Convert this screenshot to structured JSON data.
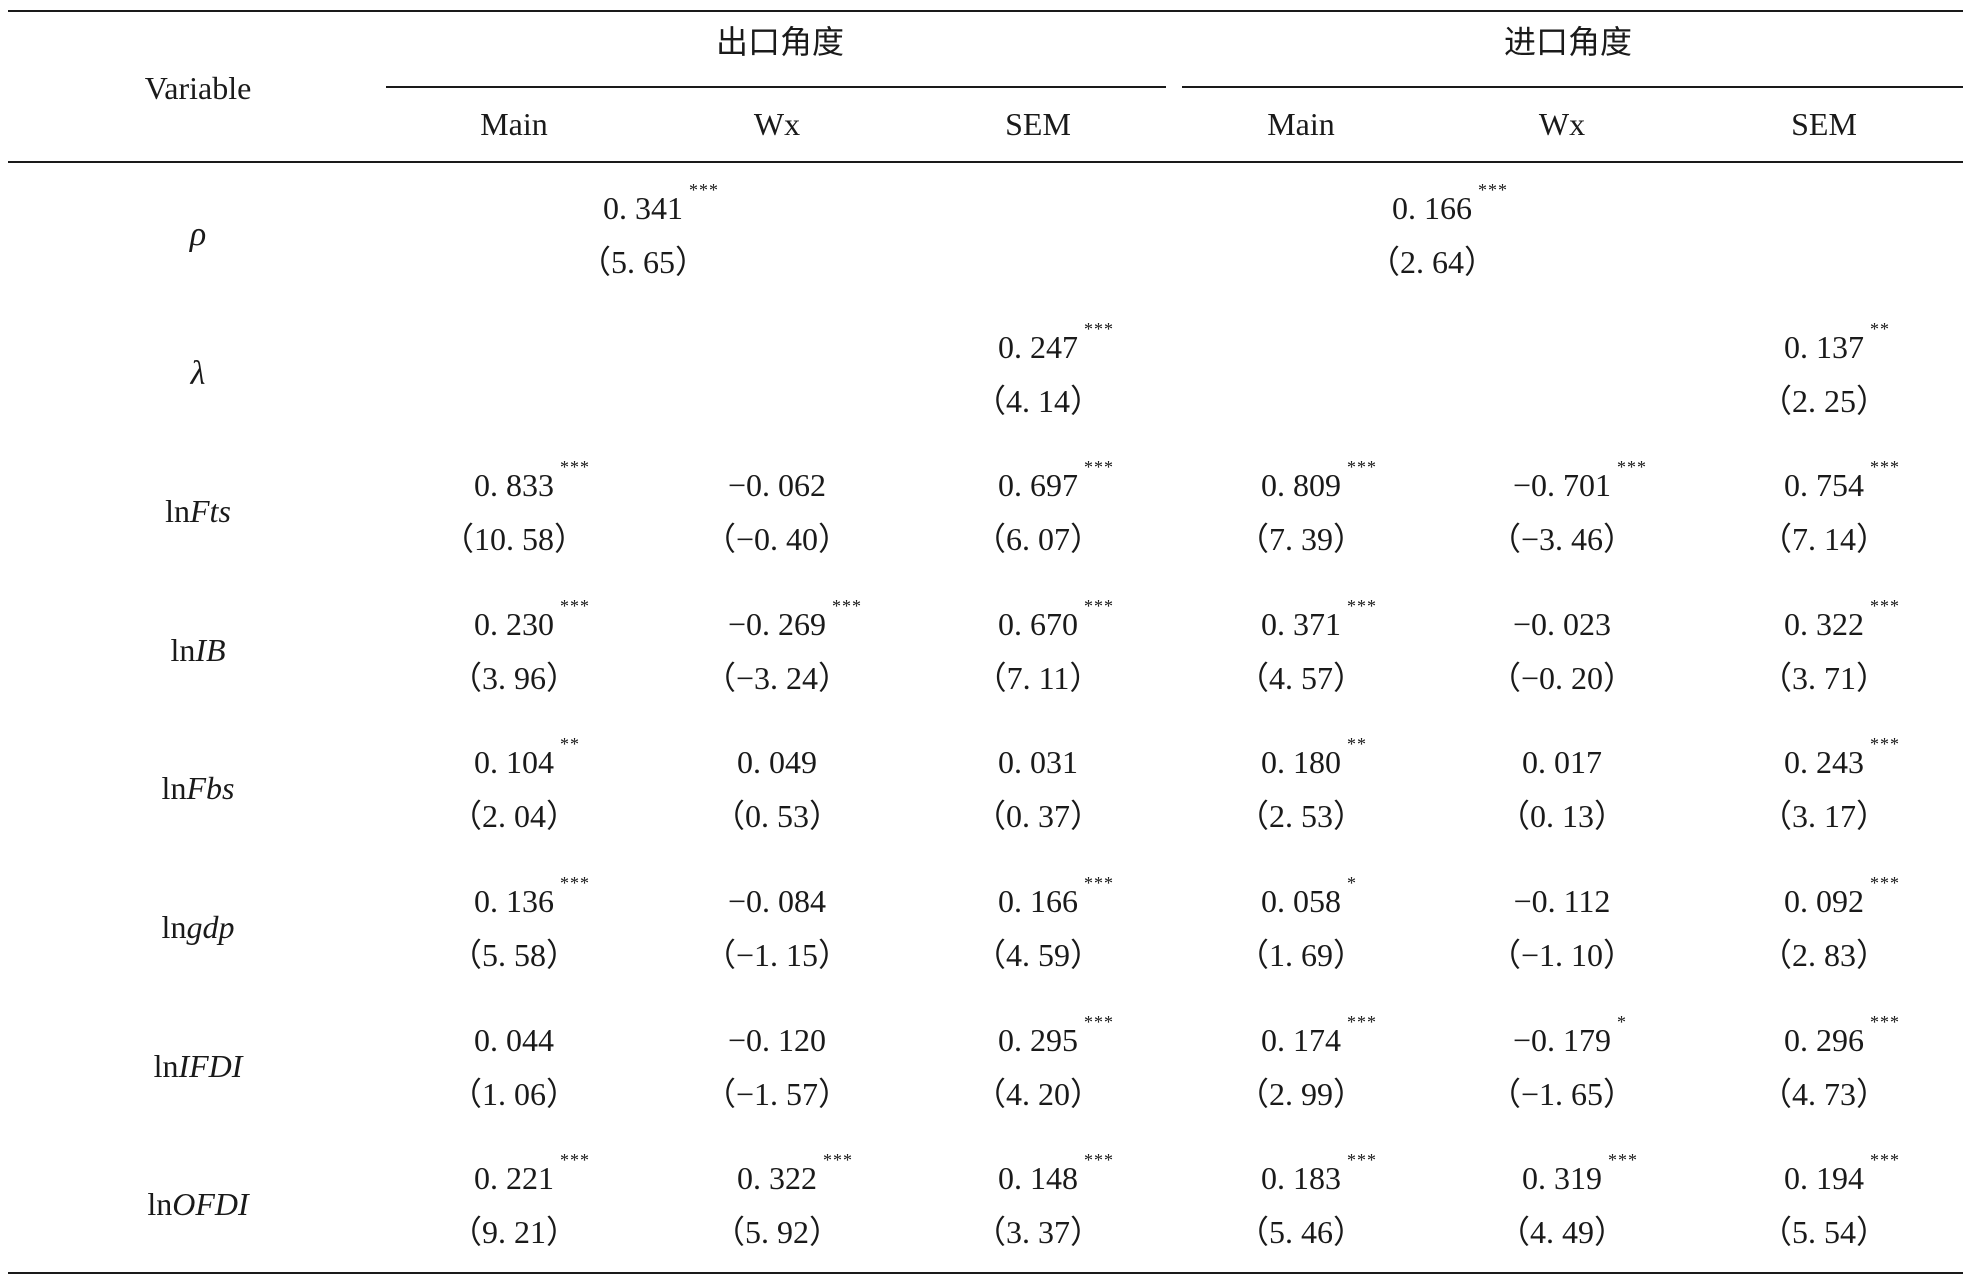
{
  "header": {
    "variable": "Variable",
    "group_export": "出口角度",
    "group_import": "进口角度",
    "sub_columns": [
      "Main",
      "Wx",
      "SEM",
      "Main",
      "Wx",
      "SEM"
    ]
  },
  "rows": [
    {
      "variable_prefix": "",
      "variable_italic": "ρ",
      "greek": true,
      "cells": [
        {
          "coef": "0. 341",
          "stars": "***",
          "t": "(5. 65)",
          "col": "export_span"
        },
        {
          "coef": "0. 166",
          "stars": "***",
          "t": "(2. 64)",
          "col": "import_span"
        }
      ]
    },
    {
      "variable_prefix": "",
      "variable_italic": "λ",
      "greek": true,
      "cells": [
        {
          "coef": "0. 247",
          "stars": "***",
          "t": "(4. 14)",
          "col": 2
        },
        {
          "coef": "0. 137",
          "stars": "**",
          "t": "(2. 25)",
          "col": 5
        }
      ]
    },
    {
      "variable_prefix": "ln",
      "variable_italic": "Fts",
      "cells": [
        {
          "coef": "0. 833",
          "stars": "***",
          "t": "(10. 58)",
          "col": 0
        },
        {
          "coef": "-0. 062",
          "stars": "",
          "t": "(-0. 40)",
          "col": 1
        },
        {
          "coef": "0. 697",
          "stars": "***",
          "t": "(6. 07)",
          "col": 2
        },
        {
          "coef": "0. 809",
          "stars": "***",
          "t": "(7. 39)",
          "col": 3
        },
        {
          "coef": "-0. 701",
          "stars": "***",
          "t": "(-3. 46)",
          "col": 4
        },
        {
          "coef": "0. 754",
          "stars": "***",
          "t": "(7. 14)",
          "col": 5
        }
      ]
    },
    {
      "variable_prefix": "ln",
      "variable_italic": "IB",
      "cells": [
        {
          "coef": "0. 230",
          "stars": "***",
          "t": "(3. 96)",
          "col": 0
        },
        {
          "coef": "-0. 269",
          "stars": "***",
          "t": "(-3. 24)",
          "col": 1
        },
        {
          "coef": "0. 670",
          "stars": "***",
          "t": "(7. 11)",
          "col": 2
        },
        {
          "coef": "0. 371",
          "stars": "***",
          "t": "(4. 57)",
          "col": 3
        },
        {
          "coef": "-0. 023",
          "stars": "",
          "t": "(-0. 20)",
          "col": 4
        },
        {
          "coef": "0. 322",
          "stars": "***",
          "t": "(3. 71)",
          "col": 5
        }
      ]
    },
    {
      "variable_prefix": "ln",
      "variable_italic": "Fbs",
      "cells": [
        {
          "coef": "0. 104",
          "stars": "**",
          "t": "(2. 04)",
          "col": 0
        },
        {
          "coef": "0. 049",
          "stars": "",
          "t": "(0. 53)",
          "col": 1
        },
        {
          "coef": "0. 031",
          "stars": "",
          "t": "(0. 37)",
          "col": 2
        },
        {
          "coef": "0. 180",
          "stars": "**",
          "t": "(2. 53)",
          "col": 3
        },
        {
          "coef": "0. 017",
          "stars": "",
          "t": "(0. 13)",
          "col": 4
        },
        {
          "coef": "0. 243",
          "stars": "***",
          "t": "(3. 17)",
          "col": 5
        }
      ]
    },
    {
      "variable_prefix": "ln",
      "variable_italic": "gdp",
      "cells": [
        {
          "coef": "0. 136",
          "stars": "***",
          "t": "(5. 58)",
          "col": 0
        },
        {
          "coef": "-0. 084",
          "stars": "",
          "t": "(-1. 15)",
          "col": 1
        },
        {
          "coef": "0. 166",
          "stars": "***",
          "t": "(4. 59)",
          "col": 2
        },
        {
          "coef": "0. 058",
          "stars": "*",
          "t": "(1. 69)",
          "col": 3
        },
        {
          "coef": "-0. 112",
          "stars": "",
          "t": "(-1. 10)",
          "col": 4
        },
        {
          "coef": "0. 092",
          "stars": "***",
          "t": "(2. 83)",
          "col": 5
        }
      ]
    },
    {
      "variable_prefix": "ln",
      "variable_italic": "IFDI",
      "cells": [
        {
          "coef": "0. 044",
          "stars": "",
          "t": "(1. 06)",
          "col": 0
        },
        {
          "coef": "-0. 120",
          "stars": "",
          "t": "(-1. 57)",
          "col": 1
        },
        {
          "coef": "0. 295",
          "stars": "***",
          "t": "(4. 20)",
          "col": 2
        },
        {
          "coef": "0. 174",
          "stars": "***",
          "t": "(2. 99)",
          "col": 3
        },
        {
          "coef": "-0. 179",
          "stars": "*",
          "t": "(-1. 65)",
          "col": 4
        },
        {
          "coef": "0. 296",
          "stars": "***",
          "t": "(4. 73)",
          "col": 5
        }
      ]
    },
    {
      "variable_prefix": "ln",
      "variable_italic": "OFDI",
      "cells": [
        {
          "coef": "0. 221",
          "stars": "***",
          "t": "(9. 21)",
          "col": 0
        },
        {
          "coef": "0. 322",
          "stars": "***",
          "t": "(5. 92)",
          "col": 1
        },
        {
          "coef": "0. 148",
          "stars": "***",
          "t": "(3. 37)",
          "col": 2
        },
        {
          "coef": "0. 183",
          "stars": "***",
          "t": "(5. 46)",
          "col": 3
        },
        {
          "coef": "0. 319",
          "stars": "***",
          "t": "(4. 49)",
          "col": 4
        },
        {
          "coef": "0. 194",
          "stars": "***",
          "t": "(5. 54)",
          "col": 5
        }
      ]
    }
  ]
}
